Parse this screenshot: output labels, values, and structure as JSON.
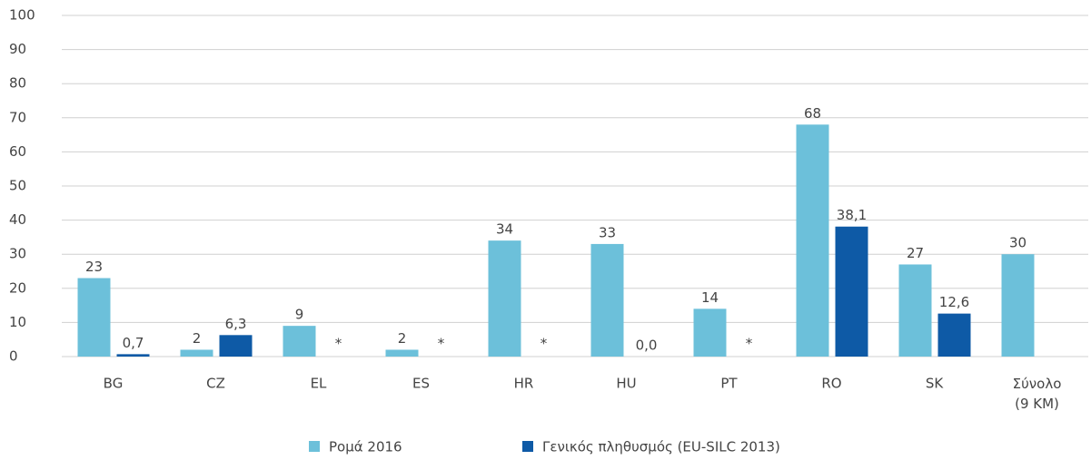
{
  "chart_data": {
    "type": "bar",
    "categories": [
      "BG",
      "CZ",
      "EL",
      "ES",
      "HR",
      "HU",
      "PT",
      "RO",
      "SK",
      "Σύνολο (9 ΚΜ)"
    ],
    "series": [
      {
        "name": "Ρομά 2016",
        "color": "#6cc0da",
        "values": [
          23,
          2,
          9,
          2,
          34,
          33,
          14,
          68,
          27,
          30
        ]
      },
      {
        "name": "Γενικός πληθυσμός (EU-SILC 2013)",
        "color": "#0e5aa6",
        "values": [
          0.7,
          6.3,
          null,
          null,
          null,
          0,
          null,
          38.1,
          12.6,
          null
        ],
        "value_labels": [
          "0,7",
          "6,3",
          "*",
          "*",
          "*",
          "0,0",
          "*",
          "38,1",
          "12,6",
          null
        ]
      }
    ],
    "ylim": [
      0,
      100
    ],
    "yticks": [
      0,
      10,
      20,
      30,
      40,
      50,
      60,
      70,
      80,
      90,
      100
    ],
    "grid": true,
    "legend": "bottom"
  }
}
